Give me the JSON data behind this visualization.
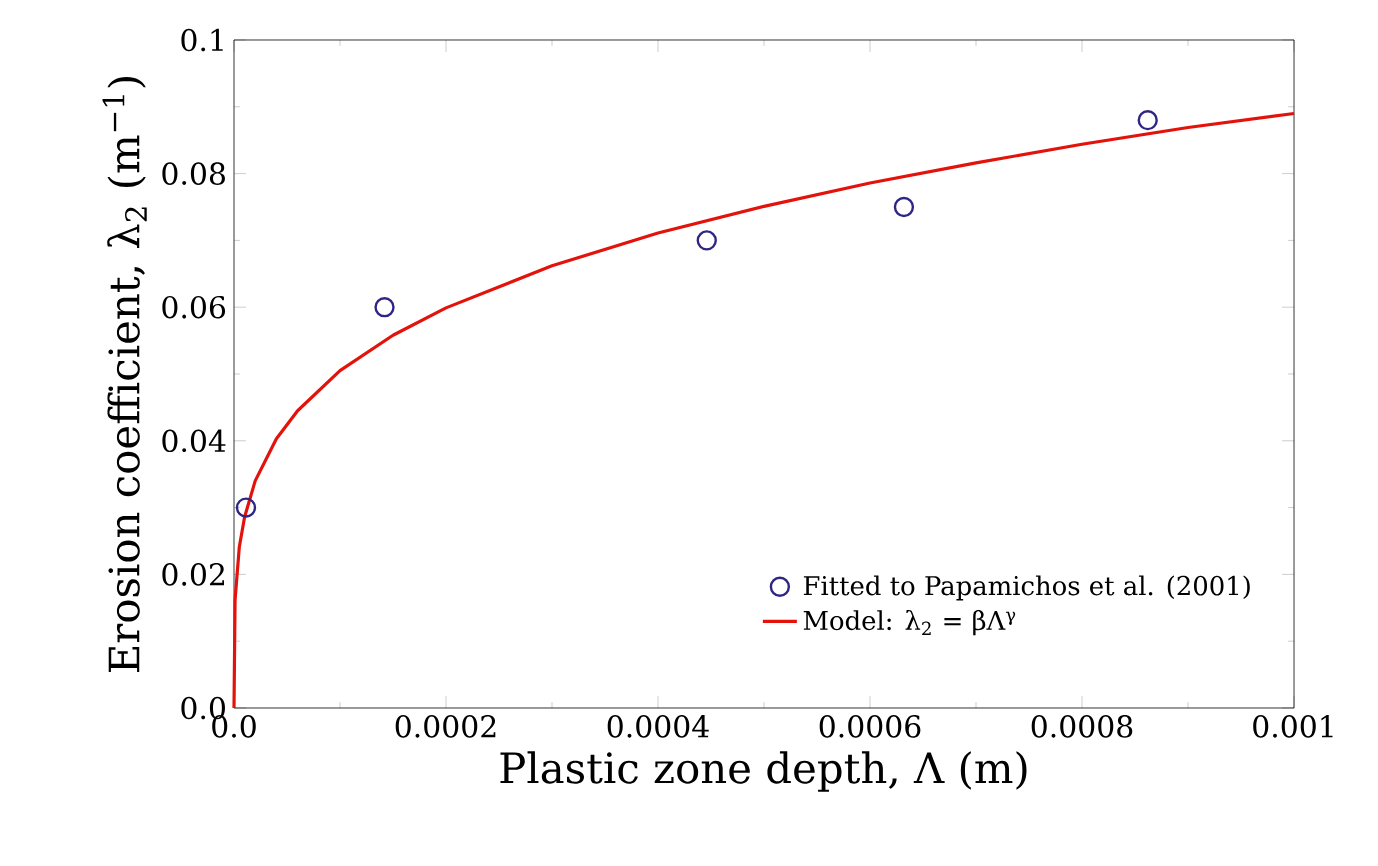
{
  "chart_data": {
    "type": "scatter",
    "xlabel": "Plastic zone depth, Λ (m)",
    "ylabel": "Erosion coefficient, λ$_{2}$ (m$^{−1}$)",
    "xlim": [
      0,
      0.001
    ],
    "ylim": [
      0,
      0.1
    ],
    "xticks": [
      {
        "value": 0,
        "label": "0.0"
      },
      0.0002,
      0.0004,
      0.0006,
      0.0008,
      0.001
    ],
    "yticks": [
      {
        "value": 0,
        "label": "0.0"
      },
      0.02,
      0.04,
      0.06,
      0.08,
      0.1
    ],
    "grid": false,
    "legend": "bottom right",
    "series": [
      {
        "name": "Fitted to Papamichos et al. (2001)",
        "marker": "circle",
        "color": "#2e2585",
        "x": [
          1.13e-05,
          0.000142,
          0.000446,
          0.000632,
          0.000862
        ],
        "values": [
          0.03,
          0.06,
          0.07,
          0.075,
          0.088
        ]
      },
      {
        "name": "Model: λ$_{2}$ = βΛ$^{γ}$",
        "type": "line",
        "marker": "none",
        "line_style": "solid",
        "color": "#e3120b",
        "x": [
          0,
          1e-06,
          5e-06,
          1e-05,
          2e-05,
          4e-05,
          6e-05,
          0.0001,
          0.00015,
          0.0002,
          0.0003,
          0.0004,
          0.0005,
          0.0006,
          0.0007,
          0.0008,
          0.0009,
          0.001
        ],
        "values": [
          0,
          0.0162,
          0.0241,
          0.0286,
          0.034,
          0.0403,
          0.0445,
          0.0505,
          0.0558,
          0.0599,
          0.0662,
          0.0711,
          0.0751,
          0.0786,
          0.0816,
          0.0844,
          0.0869,
          0.089
        ]
      }
    ]
  }
}
